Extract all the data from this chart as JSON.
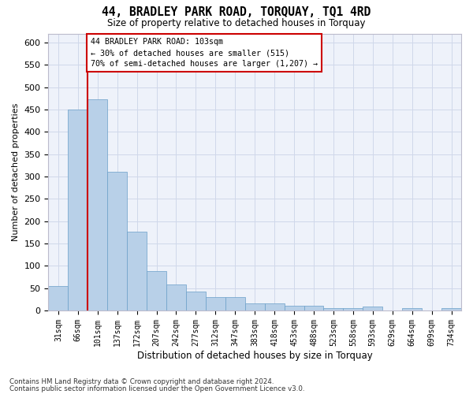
{
  "title": "44, BRADLEY PARK ROAD, TORQUAY, TQ1 4RD",
  "subtitle": "Size of property relative to detached houses in Torquay",
  "xlabel": "Distribution of detached houses by size in Torquay",
  "ylabel": "Number of detached properties",
  "bar_color": "#b8d0e8",
  "bar_edge_color": "#6a9fc8",
  "background_color": "#eef2fa",
  "grid_color": "#d0d8ea",
  "bins": [
    "31sqm",
    "66sqm",
    "101sqm",
    "137sqm",
    "172sqm",
    "207sqm",
    "242sqm",
    "277sqm",
    "312sqm",
    "347sqm",
    "383sqm",
    "418sqm",
    "453sqm",
    "488sqm",
    "523sqm",
    "558sqm",
    "593sqm",
    "629sqm",
    "664sqm",
    "699sqm",
    "734sqm"
  ],
  "values": [
    55,
    450,
    472,
    310,
    176,
    88,
    58,
    43,
    30,
    30,
    15,
    15,
    10,
    10,
    6,
    6,
    8,
    0,
    5,
    0,
    5
  ],
  "property_line_color": "#cc0000",
  "annotation_line1": "44 BRADLEY PARK ROAD: 103sqm",
  "annotation_line2": "← 30% of detached houses are smaller (515)",
  "annotation_line3": "70% of semi-detached houses are larger (1,207) →",
  "annotation_box_color": "#ffffff",
  "annotation_box_edge": "#cc0000",
  "ylim": [
    0,
    620
  ],
  "yticks": [
    0,
    50,
    100,
    150,
    200,
    250,
    300,
    350,
    400,
    450,
    500,
    550,
    600
  ],
  "footnote1": "Contains HM Land Registry data © Crown copyright and database right 2024.",
  "footnote2": "Contains public sector information licensed under the Open Government Licence v3.0."
}
